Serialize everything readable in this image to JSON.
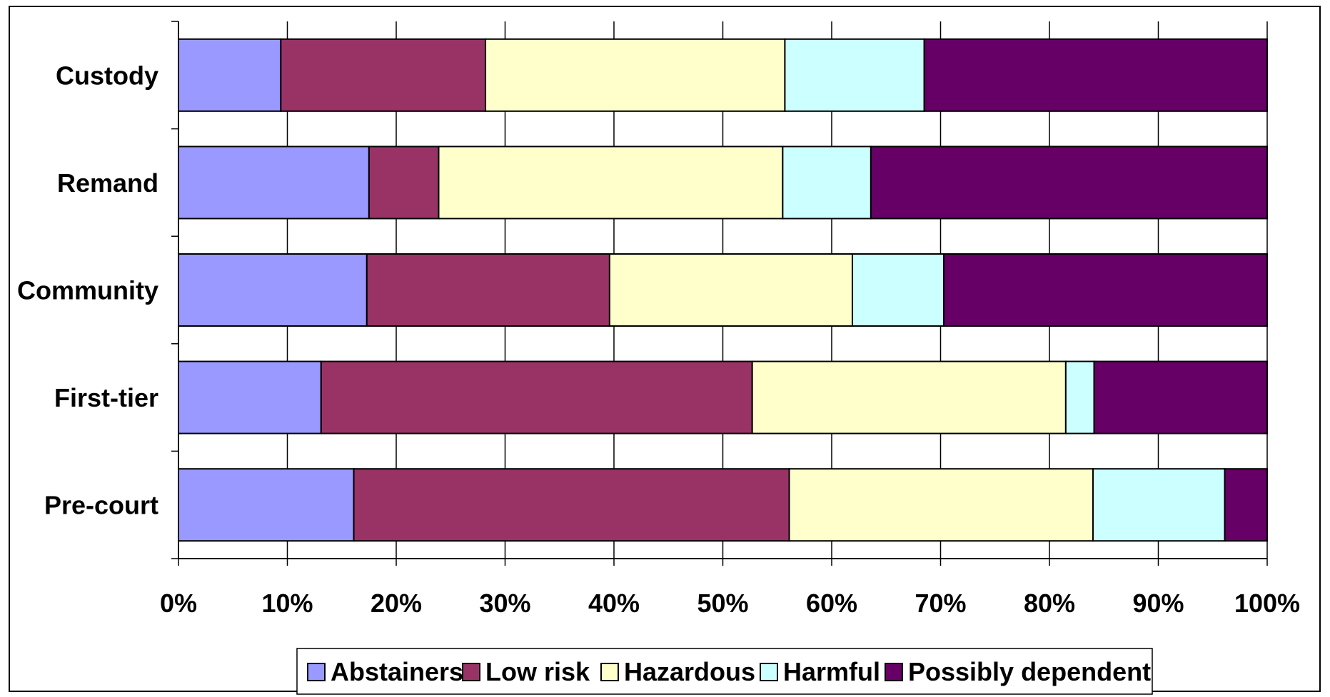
{
  "chart_data": {
    "type": "bar",
    "orientation": "horizontal",
    "stacking": "percent",
    "categories": [
      "Custody",
      "Remand",
      "Community",
      "First-tier",
      "Pre-court"
    ],
    "series": [
      {
        "name": "Abstainers",
        "color": "#9999ff",
        "values": [
          9.4,
          17.5,
          17.3,
          13.1,
          16.1
        ]
      },
      {
        "name": "Low risk",
        "color": "#993366",
        "values": [
          18.8,
          6.4,
          22.3,
          39.6,
          40.0
        ]
      },
      {
        "name": "Hazardous",
        "color": "#ffffcc",
        "values": [
          27.5,
          31.6,
          22.3,
          28.8,
          27.9
        ]
      },
      {
        "name": "Harmful",
        "color": "#ccffff",
        "values": [
          12.8,
          8.1,
          8.4,
          2.6,
          12.1
        ]
      },
      {
        "name": "Possibly dependent",
        "color": "#660066",
        "values": [
          31.5,
          36.4,
          29.7,
          15.9,
          3.9
        ]
      }
    ],
    "x_ticks": [
      "0%",
      "10%",
      "20%",
      "30%",
      "40%",
      "50%",
      "60%",
      "70%",
      "80%",
      "90%",
      "100%"
    ],
    "xlim": [
      0,
      100
    ],
    "grid": true,
    "legend_position": "bottom",
    "title": "",
    "xlabel": "",
    "ylabel": ""
  }
}
